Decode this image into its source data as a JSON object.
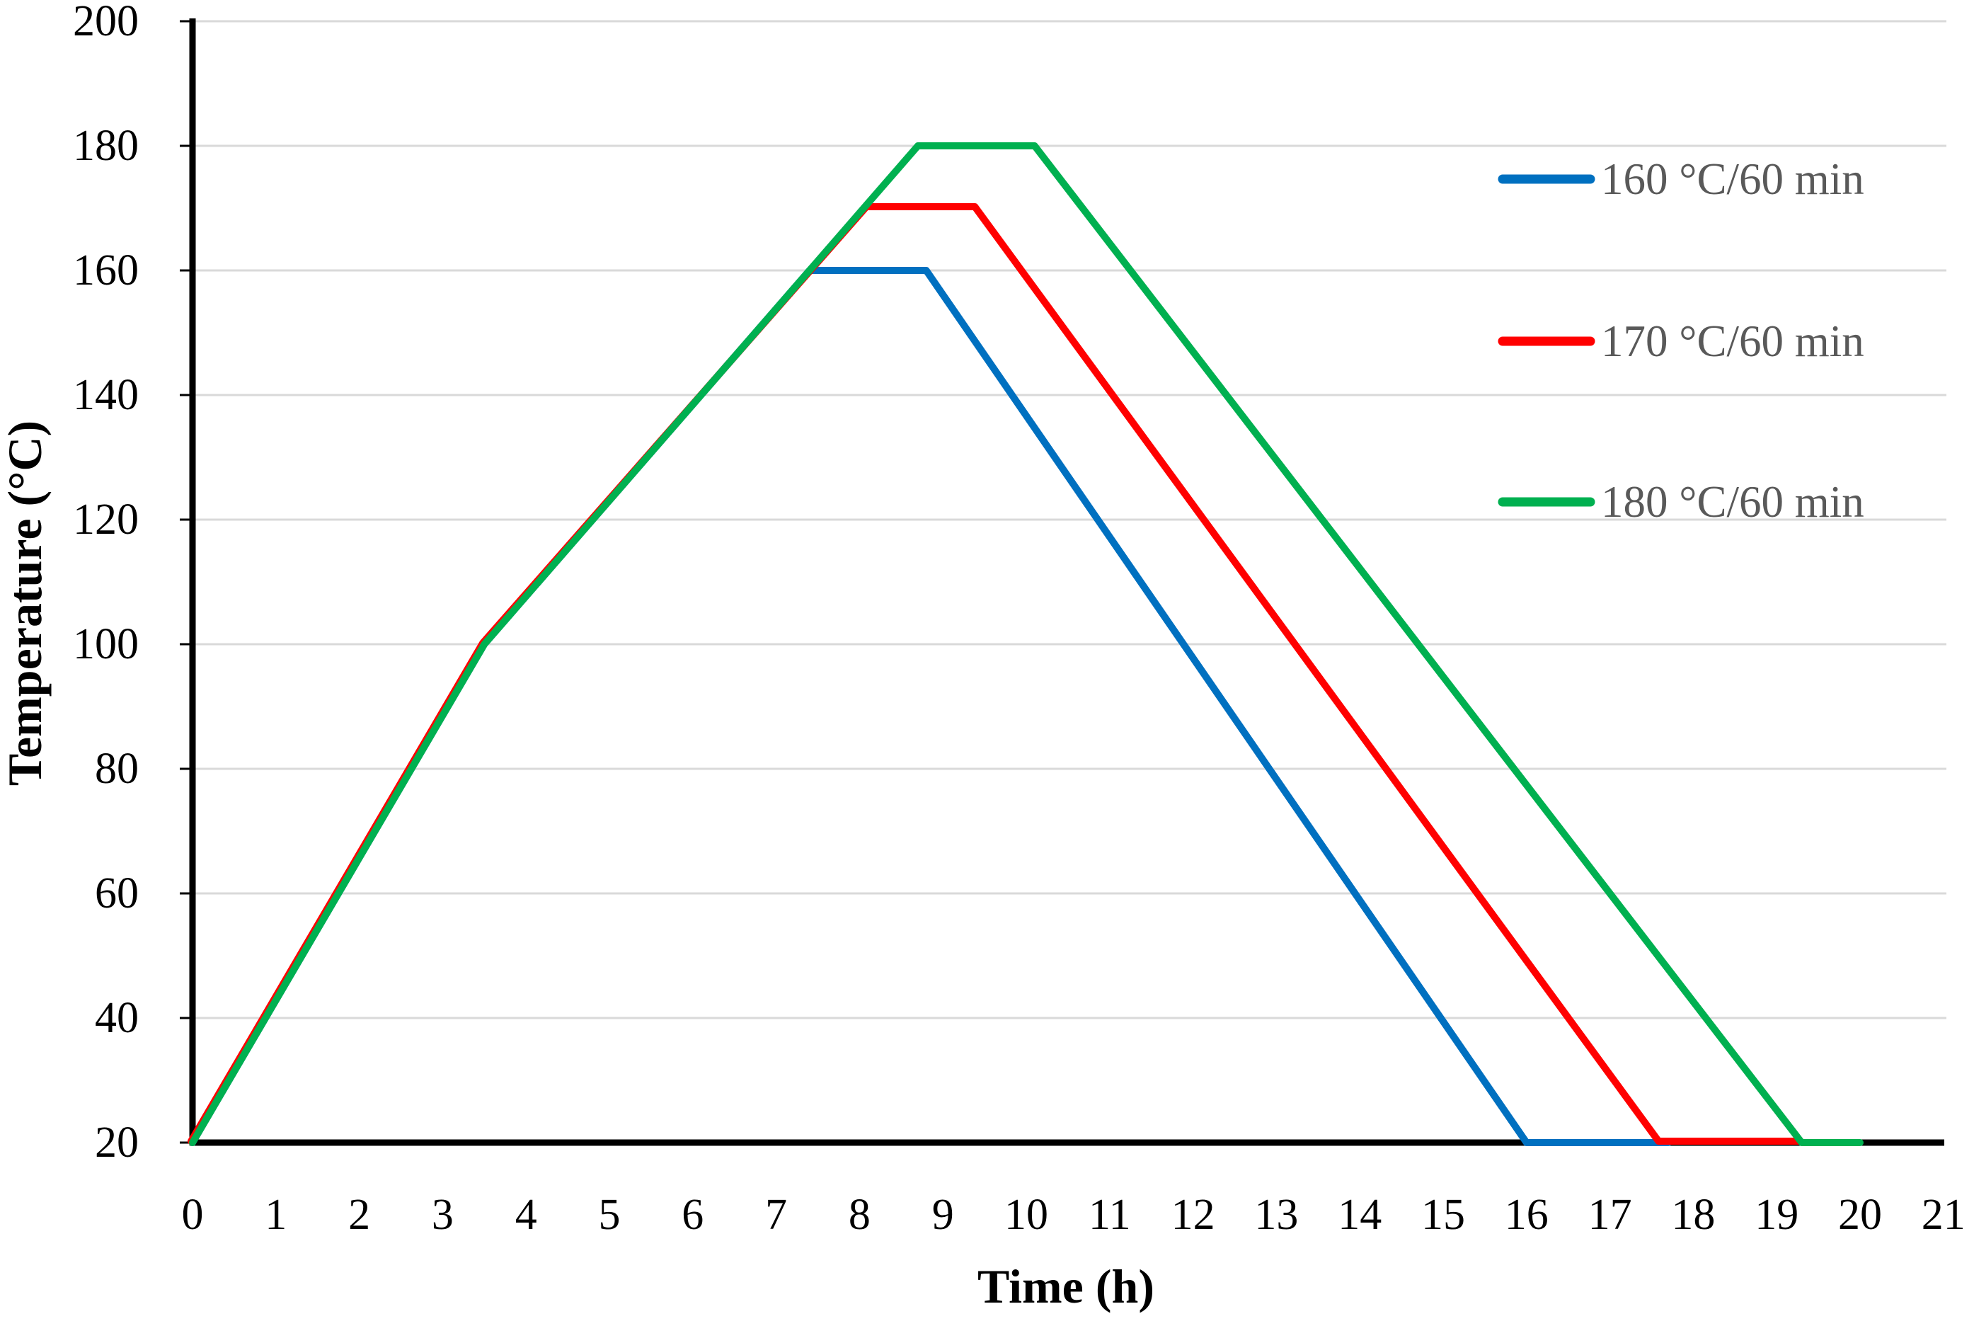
{
  "chart_data": {
    "type": "line",
    "title": "",
    "xlabel": "Time (h)",
    "ylabel": "Temperature (°C)",
    "xlim": [
      0,
      21
    ],
    "ylim": [
      20,
      200
    ],
    "x_ticks": [
      0,
      1,
      2,
      3,
      4,
      5,
      6,
      7,
      8,
      9,
      10,
      11,
      12,
      13,
      14,
      15,
      16,
      17,
      18,
      19,
      20,
      21
    ],
    "y_ticks": [
      20,
      40,
      60,
      80,
      100,
      120,
      140,
      160,
      180,
      200
    ],
    "grid": "horizontal-only",
    "legend_position": "inside-top-right",
    "series": [
      {
        "name": "160 °C/60 min",
        "color": "#0070C0",
        "points": [
          [
            0,
            20
          ],
          [
            3.5,
            100
          ],
          [
            7.4,
            160
          ],
          [
            8.8,
            160
          ],
          [
            16.0,
            20
          ],
          [
            17.7,
            20
          ]
        ]
      },
      {
        "name": "170 °C/60 min",
        "color": "#FF0000",
        "points": [
          [
            0,
            20
          ],
          [
            3.5,
            100
          ],
          [
            8.1,
            170
          ],
          [
            9.4,
            170
          ],
          [
            17.6,
            20
          ],
          [
            19.3,
            20
          ]
        ]
      },
      {
        "name": "180 °C/60 min",
        "color": "#00B050",
        "points": [
          [
            0,
            20
          ],
          [
            3.5,
            100
          ],
          [
            8.7,
            180
          ],
          [
            10.1,
            180
          ],
          [
            19.3,
            20
          ],
          [
            20.0,
            20
          ]
        ]
      }
    ],
    "annotations": {
      "ramp_note_visible": false
    },
    "colors": {
      "gridline": "#D9D9D9",
      "axis_line": "#000000",
      "tick_label": "#000000",
      "legend_text": "#595959",
      "background": "#FFFFFF"
    }
  }
}
